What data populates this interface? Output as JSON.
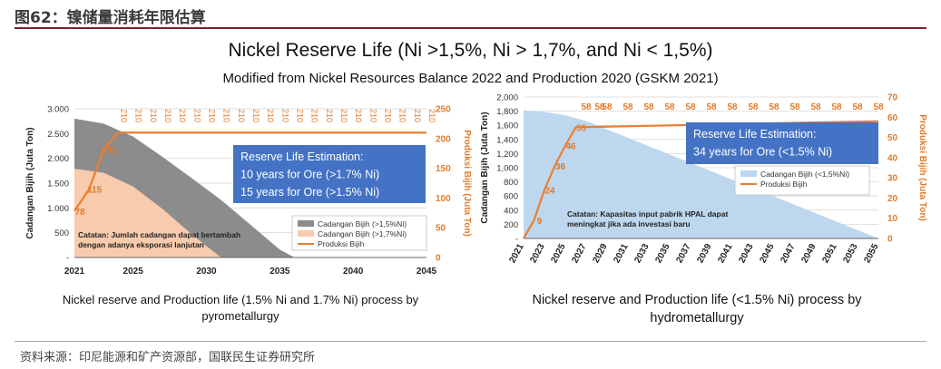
{
  "header": {
    "figure_title": "图62：镍储量消耗年限估算"
  },
  "titles": {
    "main": "Nickel Reserve Life (Ni >1,5%, Ni > 1,7%, and Ni < 1,5%)",
    "sub": "Modified from Nickel Resources Balance 2022 and Production 2020 (GSKM 2021)"
  },
  "captions": {
    "left": "Nickel reserve and Production life (1.5% Ni and 1.7% Ni) process by pyrometallurgy",
    "right": "Nickel reserve and Production life (<1.5% Ni) process by hydrometallurgy"
  },
  "footer": {
    "source": "资料来源：印尼能源和矿产资源部，国联民生证券研究所"
  },
  "colors": {
    "orange": "#ed7d31",
    "grey_area": "#8c8c8c",
    "peach_area": "#f8cbad",
    "blue_area": "#bdd7ee",
    "box_blue": "#4472c4"
  },
  "chart_data": [
    {
      "type": "area+line",
      "title": "Nickel reserve and Production life (1.5% Ni and 1.7% Ni) process by pyrometallurgy",
      "xlabel": "",
      "ylabel": "Cadangan Bijih (Juta Ton)",
      "y2label": "Produksi Bijih (Juta Ton)",
      "xlim": [
        2021,
        2045
      ],
      "x_ticks": [
        "2021",
        "2025",
        "2030",
        "2035",
        "2040",
        "2045"
      ],
      "ylim": [
        0,
        3000
      ],
      "y_ticks": [
        "-",
        "500",
        "1.000",
        "1.500",
        "2.000",
        "2.500",
        "3.000"
      ],
      "y2lim": [
        0,
        250
      ],
      "y2_ticks": [
        "0",
        "50",
        "100",
        "150",
        "200",
        "250"
      ],
      "series": [
        {
          "name": "Cadangan Bijih (>1,5%Ni)",
          "kind": "area",
          "axis": "left",
          "x": [
            2021,
            2023,
            2025,
            2027,
            2029,
            2031,
            2033,
            2035,
            2036
          ],
          "values": [
            2800,
            2700,
            2440,
            2030,
            1600,
            1160,
            660,
            160,
            0
          ]
        },
        {
          "name": "Cadangan Bijih (>1,7%Ni)",
          "kind": "area",
          "axis": "left",
          "x": [
            2021,
            2023,
            2025,
            2027,
            2029,
            2030,
            2031
          ],
          "values": [
            1790,
            1710,
            1430,
            980,
            470,
            230,
            0
          ]
        },
        {
          "name": "Produksi Bijih",
          "kind": "line",
          "axis": "right",
          "x": [
            2021,
            2022,
            2023,
            2024,
            2045
          ],
          "values": [
            78,
            115,
            182,
            210,
            210
          ]
        }
      ],
      "data_labels": [
        {
          "x": 2021,
          "text": "78"
        },
        {
          "x": 2022,
          "text": "115"
        },
        {
          "x": 2023,
          "text": "182"
        }
      ],
      "top_labels": {
        "text": "210",
        "x": [
          2024,
          2025,
          2026,
          2027,
          2028,
          2029,
          2030,
          2031,
          2032,
          2033,
          2034,
          2035,
          2036,
          2037,
          2038,
          2039,
          2040,
          2041,
          2042,
          2043,
          2044,
          2045
        ]
      },
      "legend": [
        "Cadangan Bijih (>1,5%Ni)",
        "Cadangan Bijih (>1,7%Ni)",
        "Produksi Bijih"
      ],
      "note": [
        "Catatan: Jumlah cadangan dapat bertambah",
        "dengan adanya eksporasi lanjutan"
      ],
      "callout": [
        "Reserve Life Estimation:",
        "10 years for Ore (>1.7% Ni)",
        "15 years for Ore (>1.5% Ni)"
      ]
    },
    {
      "type": "area+line",
      "title": "Nickel reserve and Production life (<1.5% Ni) process by hydrometallurgy",
      "xlabel": "",
      "ylabel": "Cadangan Bijih (Juta Ton)",
      "y2label": "Produksi Bijih (Juta Ton)",
      "xlim": [
        2021,
        2055
      ],
      "x_ticks": [
        "2021",
        "2023",
        "2025",
        "2027",
        "2029",
        "2031",
        "2033",
        "2035",
        "2037",
        "2039",
        "2041",
        "2043",
        "2045",
        "2047",
        "2049",
        "2051",
        "2053",
        "2055"
      ],
      "ylim": [
        0,
        2000
      ],
      "y_ticks": [
        "-",
        "200",
        "400",
        "600",
        "800",
        "1,000",
        "1,200",
        "1,400",
        "1,600",
        "1,800",
        "2,000"
      ],
      "y2lim": [
        0,
        70
      ],
      "y2_ticks": [
        "0",
        "10",
        "20",
        "30",
        "40",
        "50",
        "60",
        "70"
      ],
      "series": [
        {
          "name": "Cadangan Bijih (<1,5%Ni)",
          "kind": "area",
          "axis": "left",
          "x": [
            2021,
            2023,
            2025,
            2027,
            2055
          ],
          "values": [
            1810,
            1790,
            1740,
            1660,
            0
          ]
        },
        {
          "name": "Produksi Bijih",
          "kind": "line",
          "axis": "right",
          "x": [
            2021,
            2022,
            2023,
            2024,
            2025,
            2026,
            2055
          ],
          "values": [
            0,
            9,
            24,
            36,
            46,
            55,
            58
          ]
        }
      ],
      "data_labels": [
        {
          "x": 2022,
          "text": "9"
        },
        {
          "x": 2023,
          "text": "24"
        },
        {
          "x": 2024,
          "text": "36"
        },
        {
          "x": 2025,
          "text": "46"
        },
        {
          "x": 2026,
          "text": "55"
        }
      ],
      "top_labels": {
        "text": "58",
        "x": [
          2027,
          2028.3,
          2029,
          2031,
          2033,
          2035,
          2037,
          2039,
          2041,
          2043,
          2045,
          2047,
          2049,
          2051,
          2053,
          2055
        ]
      },
      "legend": [
        "Cadangan Bijih (<1,5%Ni)",
        "Produksi Bijih"
      ],
      "note": [
        "Catatan: Kapasitas input pabrik HPAL dapat",
        "meningkat jika ada investasi baru"
      ],
      "callout": [
        "Reserve Life Estimation:",
        "34 years for Ore (<1.5% Ni)"
      ]
    }
  ]
}
